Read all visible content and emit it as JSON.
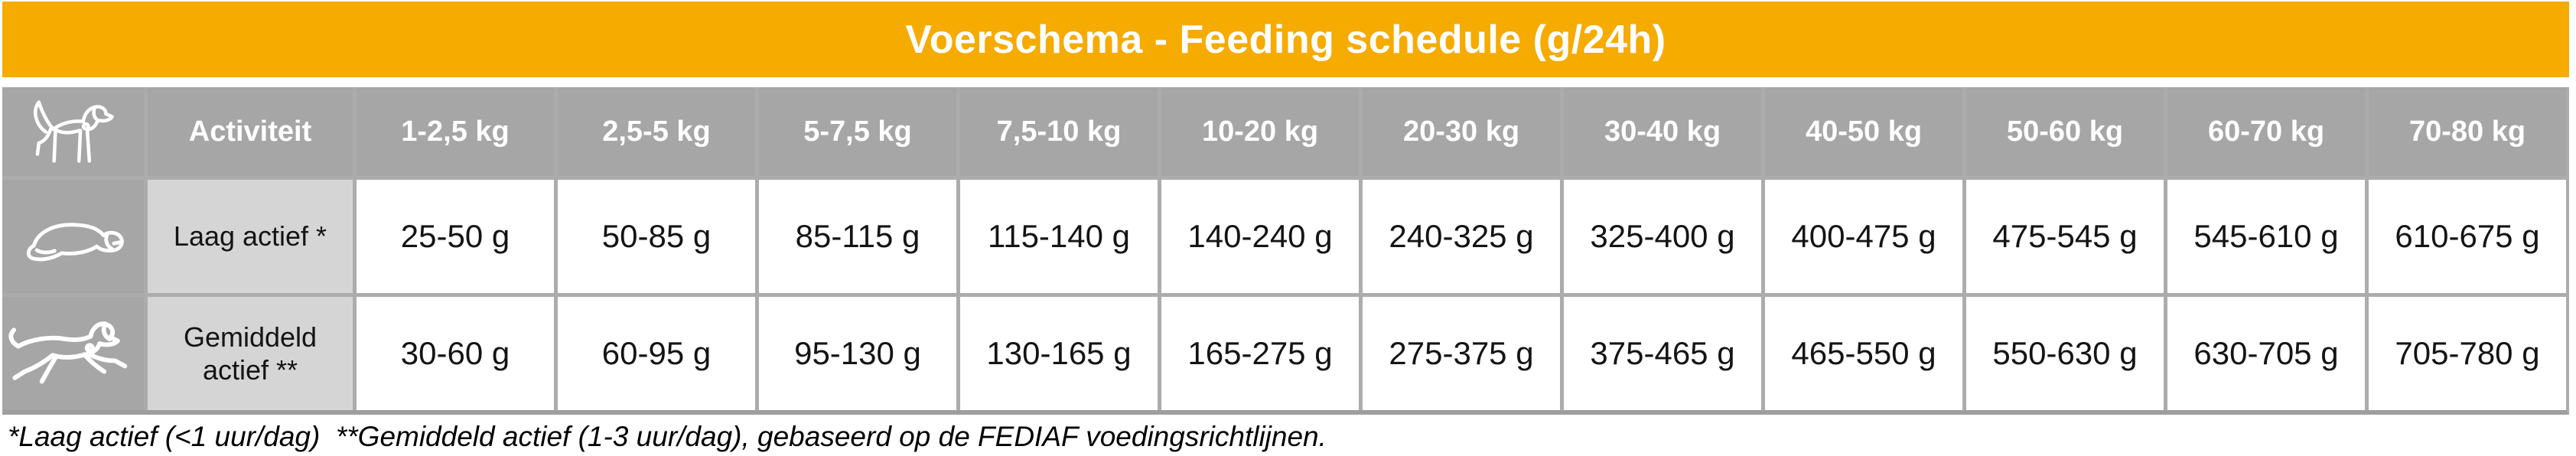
{
  "title": "Voerschema - Feeding schedule (g/24h)",
  "colors": {
    "accent_orange": "#F6AB00",
    "header_gray": "#A6A6A6",
    "label_gray": "#D5D5D5",
    "grid_gray": "#ACACAC",
    "title_text": "#FFFFFF",
    "cell_text": "#141414"
  },
  "table": {
    "corner_icon": "standing-dog-icon",
    "activity_header": "Activiteit",
    "weight_headers": [
      "1-2,5 kg",
      "2,5-5 kg",
      "5-7,5 kg",
      "7,5-10 kg",
      "10-20 kg",
      "20-30 kg",
      "30-40 kg",
      "40-50 kg",
      "50-60 kg",
      "60-70 kg",
      "70-80 kg"
    ],
    "rows": [
      {
        "icon": "lying-dog-icon",
        "label": "Laag actief *",
        "values": [
          "25-50 g",
          "50-85 g",
          "85-115 g",
          "115-140 g",
          "140-240 g",
          "240-325 g",
          "325-400 g",
          "400-475 g",
          "475-545 g",
          "545-610 g",
          "610-675 g"
        ]
      },
      {
        "icon": "running-dog-icon",
        "label": "Gemiddeld actief **",
        "values": [
          "30-60 g",
          "60-95 g",
          "95-130 g",
          "130-165 g",
          "165-275 g",
          "275-375 g",
          "375-465 g",
          "465-550 g",
          "550-630 g",
          "630-705 g",
          "705-780 g"
        ]
      }
    ]
  },
  "footnote": "*Laag actief (<1 uur/dag)  **Gemiddeld actief (1-3 uur/dag), gebaseerd op de FEDIAF voedingsrichtlijnen.",
  "chart_data": {
    "type": "table",
    "title": "Voerschema - Feeding schedule (g/24h)",
    "columns": [
      "Activiteit",
      "1-2,5 kg",
      "2,5-5 kg",
      "5-7,5 kg",
      "7,5-10 kg",
      "10-20 kg",
      "20-30 kg",
      "30-40 kg",
      "40-50 kg",
      "50-60 kg",
      "60-70 kg",
      "70-80 kg"
    ],
    "rows": [
      [
        "Laag actief *",
        "25-50 g",
        "50-85 g",
        "85-115 g",
        "115-140 g",
        "140-240 g",
        "240-325 g",
        "325-400 g",
        "400-475 g",
        "475-545 g",
        "545-610 g",
        "610-675 g"
      ],
      [
        "Gemiddeld actief **",
        "30-60 g",
        "60-95 g",
        "95-130 g",
        "130-165 g",
        "165-275 g",
        "275-375 g",
        "375-465 g",
        "465-550 g",
        "550-630 g",
        "630-705 g",
        "705-780 g"
      ]
    ],
    "footnote": "*Laag actief (<1 uur/dag)  **Gemiddeld actief (1-3 uur/dag), gebaseerd op de FEDIAF voedingsrichtlijnen.",
    "layout": {
      "grid": true,
      "header_position": "top-row-and-left-column"
    }
  }
}
